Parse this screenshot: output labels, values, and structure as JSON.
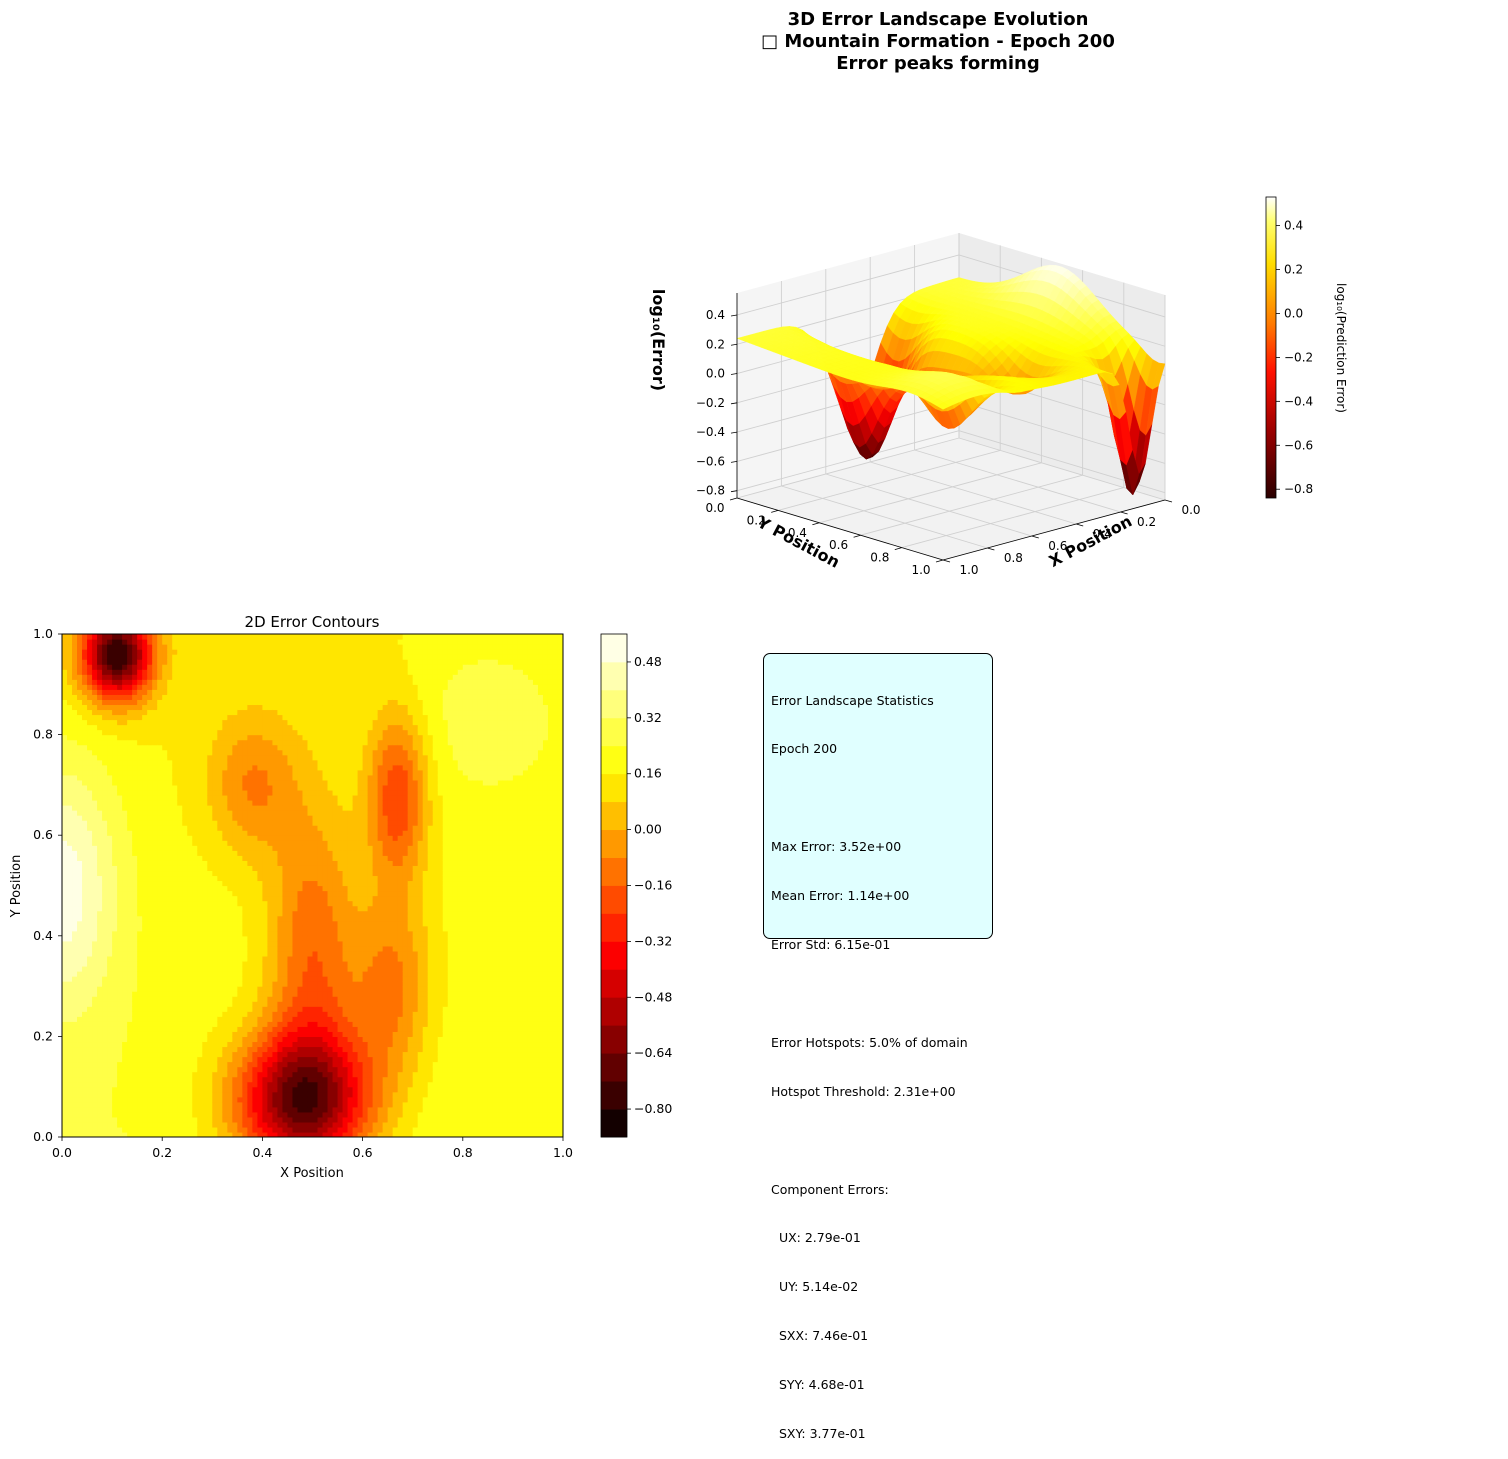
{
  "figure": {
    "title_lines": [
      "3D Error Landscape Evolution",
      "□ Mountain Formation - Epoch 200",
      "Error peaks forming"
    ]
  },
  "colors": {
    "colormap": "hot",
    "stats_box_bg": "#e0ffff",
    "pane": "#f2f2f2",
    "grid": "#d4d4d4"
  },
  "chart_data": [
    {
      "type": "surface3d",
      "title": "3D Error Landscape Evolution □ Mountain Formation - Epoch 200 Error peaks forming",
      "xlabel": "X Position",
      "ylabel": "Y Position",
      "zlabel": "log₁₀(Error)",
      "x_ticks": [
        "0.0",
        "0.2",
        "0.4",
        "0.6",
        "0.8",
        "1.0"
      ],
      "y_ticks": [
        "0.0",
        "0.2",
        "0.4",
        "0.6",
        "0.8",
        "1.0"
      ],
      "z_ticks": [
        "−0.8",
        "−0.6",
        "−0.4",
        "−0.2",
        "0.0",
        "0.2",
        "0.4"
      ],
      "zlim": [
        -0.85,
        0.55
      ],
      "colorbar_label": "log₁₀(Prediction Error)",
      "colorbar_ticks": [
        "−0.8",
        "−0.6",
        "−0.4",
        "−0.2",
        "0.0",
        "0.2",
        "0.4"
      ],
      "colorbar_range": [
        -0.84,
        0.53
      ],
      "grid": true,
      "view": {
        "elev": 30,
        "azim": 45
      }
    },
    {
      "type": "contourf",
      "title": "2D Error Contours",
      "xlabel": "X Position",
      "ylabel": "Y Position",
      "xlim": [
        0,
        1
      ],
      "ylim": [
        0,
        1
      ],
      "x_ticks": [
        "0.0",
        "0.2",
        "0.4",
        "0.6",
        "0.8",
        "1.0"
      ],
      "y_ticks": [
        "0.0",
        "0.2",
        "0.4",
        "0.6",
        "0.8",
        "1.0"
      ],
      "colorbar_ticks": [
        "0.48",
        "0.32",
        "0.16",
        "0.00",
        "−0.16",
        "−0.32",
        "−0.48",
        "−0.64",
        "−0.80"
      ],
      "level_min": -0.88,
      "level_max": 0.56,
      "level_step": 0.08,
      "features": [
        {
          "kind": "low",
          "x": 0.1,
          "y": 0.96,
          "value": -0.7
        },
        {
          "kind": "low",
          "x": 0.41,
          "y": 0.02,
          "value": -0.85
        },
        {
          "kind": "low",
          "x": 0.46,
          "y": 0.08,
          "value": -0.7
        },
        {
          "kind": "low",
          "x": 0.69,
          "y": 0.7,
          "value": -0.36
        },
        {
          "kind": "high",
          "x": 0.02,
          "y": 0.5,
          "value": 0.5
        }
      ]
    }
  ],
  "stats": {
    "lines": [
      "Error Landscape Statistics",
      "Epoch 200",
      "",
      "Max Error: 3.52e+00",
      "Mean Error: 1.14e+00",
      "Error Std: 6.15e-01",
      "",
      "Error Hotspots: 5.0% of domain",
      "Hotspot Threshold: 2.31e+00",
      "",
      "Component Errors:",
      "  UX: 2.79e-01",
      "  UY: 5.14e-02",
      "  SXX: 7.46e-01",
      "  SYY: 4.68e-01",
      "  SXY: 3.77e-01"
    ]
  }
}
